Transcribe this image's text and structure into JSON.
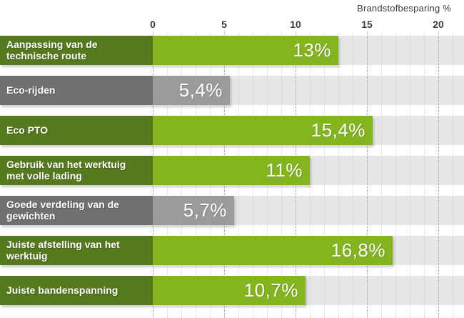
{
  "chart_data": {
    "type": "bar",
    "orientation": "horizontal",
    "title": "Brandstofbesparing %",
    "categories": [
      "Aanpassing van de technische route",
      "Eco-rijden",
      "Eco PTO",
      "Gebruik van het werktuig met volle lading",
      "Goede verdeling van de gewichten",
      "Juiste afstelling van het werktuig",
      "Juiste bandenspanning"
    ],
    "values": [
      13,
      5.4,
      15.4,
      11,
      5.7,
      16.8,
      10.7
    ],
    "value_labels": [
      "13%",
      "5,4%",
      "15,4%",
      "11%",
      "5,7%",
      "16,8%",
      "10,7%"
    ],
    "series_colors": [
      "green",
      "gray",
      "green",
      "green",
      "gray",
      "green",
      "green"
    ],
    "xlabel": "Brandstofbesparing %",
    "ylabel": "",
    "xlim": [
      0,
      20
    ],
    "xticks": [
      0,
      5,
      10,
      15,
      20
    ],
    "grid": "vertical dotted, minor every 1 unit, major every 5 units",
    "legend": "none"
  },
  "axis": {
    "title": "Brandstofbesparing %",
    "tick_labels": [
      "0",
      "5",
      "10",
      "15",
      "20"
    ]
  },
  "colors": {
    "green_label_block": "#55791d",
    "green_bar": "#84b51f",
    "gray_label_block": "#707070",
    "gray_bar": "#9b9b9b",
    "track": "#e6e6e6",
    "grid_minor": "#d2d2d2",
    "grid_major": "#9a9a9a",
    "axis_text": "#3c3c3c",
    "bar_text": "#ffffff"
  }
}
